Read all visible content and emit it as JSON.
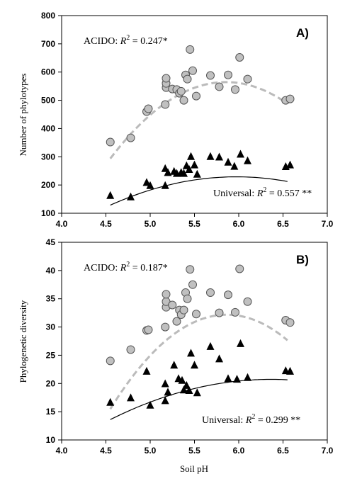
{
  "chart_data": [
    {
      "type": "scatter",
      "panel_label": "A)",
      "xlabel": "",
      "ylabel": "Number of phylotypes",
      "xlim": [
        4.0,
        7.0
      ],
      "ylim": [
        100,
        800
      ],
      "x_ticks": [
        "4.0",
        "4.5",
        "5.0",
        "5.5",
        "6.0",
        "6.5",
        "7.0"
      ],
      "y_ticks": [
        "100",
        "200",
        "300",
        "400",
        "500",
        "600",
        "700",
        "800"
      ],
      "annotations": {
        "acido_prefix": "ACIDO: ",
        "acido_r": "R",
        "acido_value": " = 0.247*",
        "universal_prefix": "Universal: ",
        "universal_r": "R",
        "universal_value": " = 0.557 **",
        "superscript": "2"
      },
      "series": [
        {
          "marker": "circle",
          "fill": "#c0c0c0",
          "trend": "dashed",
          "trend_color": "#bbbbbb",
          "trend_coeffs": [
            -4876,
            1857.8,
            -158.6
          ],
          "trend_range": [
            4.55,
            6.55
          ],
          "points": [
            [
              4.55,
              352
            ],
            [
              4.78,
              367
            ],
            [
              4.96,
              460
            ],
            [
              4.98,
              470
            ],
            [
              5.17,
              485
            ],
            [
              5.18,
              545
            ],
            [
              5.18,
              560
            ],
            [
              5.18,
              578
            ],
            [
              5.25,
              540
            ],
            [
              5.3,
              538
            ],
            [
              5.33,
              525
            ],
            [
              5.35,
              532
            ],
            [
              5.38,
              500
            ],
            [
              5.4,
              590
            ],
            [
              5.42,
              575
            ],
            [
              5.45,
              680
            ],
            [
              5.48,
              605
            ],
            [
              5.52,
              515
            ],
            [
              5.68,
              588
            ],
            [
              5.78,
              548
            ],
            [
              5.88,
              590
            ],
            [
              5.96,
              538
            ],
            [
              6.01,
              652
            ],
            [
              6.1,
              575
            ],
            [
              6.53,
              500
            ],
            [
              6.58,
              505
            ]
          ]
        },
        {
          "marker": "triangle",
          "fill": "#000000",
          "trend": "solid",
          "trend_color": "#000000",
          "trend_coeffs": [
            -1540.4,
            592.5,
            -49.6
          ],
          "trend_range": [
            4.55,
            6.55
          ],
          "points": [
            [
              4.55,
              162
            ],
            [
              4.78,
              157
            ],
            [
              4.96,
              208
            ],
            [
              5.0,
              197
            ],
            [
              5.17,
              197
            ],
            [
              5.17,
              257
            ],
            [
              5.2,
              243
            ],
            [
              5.27,
              247
            ],
            [
              5.3,
              240
            ],
            [
              5.35,
              243
            ],
            [
              5.38,
              240
            ],
            [
              5.41,
              267
            ],
            [
              5.44,
              254
            ],
            [
              5.46,
              300
            ],
            [
              5.5,
              270
            ],
            [
              5.53,
              237
            ],
            [
              5.68,
              300
            ],
            [
              5.78,
              298
            ],
            [
              5.88,
              280
            ],
            [
              5.95,
              265
            ],
            [
              6.02,
              308
            ],
            [
              6.1,
              285
            ],
            [
              6.53,
              264
            ],
            [
              6.58,
              270
            ]
          ]
        }
      ]
    },
    {
      "type": "scatter",
      "panel_label": "B)",
      "xlabel": "Soil pH",
      "ylabel": "Phylogenetic diversity",
      "xlim": [
        4.0,
        7.0
      ],
      "ylim": [
        10,
        45
      ],
      "x_ticks": [
        "4.0",
        "4.5",
        "5.0",
        "5.5",
        "6.0",
        "6.5",
        "7.0"
      ],
      "y_ticks": [
        "10",
        "15",
        "20",
        "25",
        "30",
        "35",
        "40",
        "45"
      ],
      "annotations": {
        "acido_prefix": "ACIDO: ",
        "acido_r": "R",
        "acido_value": " = 0.187*",
        "universal_prefix": "Universal: ",
        "universal_r": "R",
        "universal_value": " = 0.299 **",
        "superscript": "2"
      },
      "series": [
        {
          "marker": "circle",
          "fill": "#c0c0c0",
          "trend": "dashed",
          "trend_color": "#bbbbbb",
          "trend_coeffs": [
            -299.8,
            113.2,
            -9.65
          ],
          "trend_range": [
            4.55,
            6.55
          ],
          "points": [
            [
              4.55,
              24.0
            ],
            [
              4.78,
              26.0
            ],
            [
              4.96,
              29.4
            ],
            [
              4.98,
              29.5
            ],
            [
              5.17,
              30.0
            ],
            [
              5.18,
              33.5
            ],
            [
              5.18,
              34.5
            ],
            [
              5.18,
              35.8
            ],
            [
              5.25,
              33.9
            ],
            [
              5.3,
              31.0
            ],
            [
              5.33,
              33.0
            ],
            [
              5.35,
              32.2
            ],
            [
              5.38,
              33.0
            ],
            [
              5.4,
              36.1
            ],
            [
              5.42,
              35.0
            ],
            [
              5.45,
              40.2
            ],
            [
              5.48,
              37.5
            ],
            [
              5.52,
              32.3
            ],
            [
              5.68,
              36.1
            ],
            [
              5.78,
              32.5
            ],
            [
              5.88,
              35.7
            ],
            [
              5.96,
              32.6
            ],
            [
              6.01,
              40.3
            ],
            [
              6.1,
              34.5
            ],
            [
              6.53,
              31.2
            ],
            [
              6.58,
              30.8
            ]
          ]
        },
        {
          "marker": "triangle",
          "fill": "#000000",
          "trend": "solid",
          "trend_color": "#000000",
          "trend_coeffs": [
            -66.8,
            27.5,
            -2.16
          ],
          "trend_range": [
            4.55,
            6.55
          ],
          "points": [
            [
              4.55,
              16.6
            ],
            [
              4.78,
              17.4
            ],
            [
              4.96,
              22.1
            ],
            [
              5.0,
              16.1
            ],
            [
              5.17,
              16.9
            ],
            [
              5.17,
              19.9
            ],
            [
              5.2,
              18.4
            ],
            [
              5.27,
              23.2
            ],
            [
              5.32,
              20.8
            ],
            [
              5.36,
              20.5
            ],
            [
              5.38,
              18.8
            ],
            [
              5.41,
              19.6
            ],
            [
              5.44,
              18.7
            ],
            [
              5.46,
              25.3
            ],
            [
              5.5,
              23.2
            ],
            [
              5.53,
              18.3
            ],
            [
              5.68,
              26.5
            ],
            [
              5.78,
              24.3
            ],
            [
              5.88,
              20.8
            ],
            [
              5.98,
              20.7
            ],
            [
              6.02,
              27.0
            ],
            [
              6.1,
              21.0
            ],
            [
              6.53,
              22.2
            ],
            [
              6.58,
              22.1
            ]
          ]
        }
      ]
    }
  ]
}
